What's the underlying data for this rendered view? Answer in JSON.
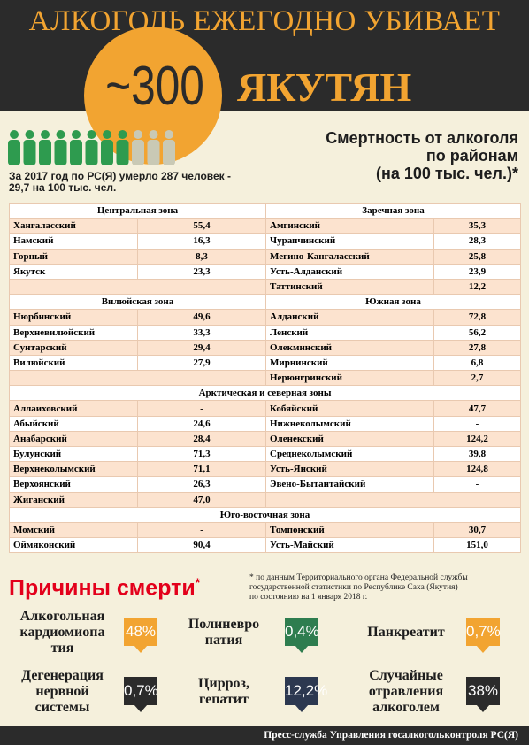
{
  "header": {
    "title": "АЛКОГОЛЬ ЕЖЕГОДНО УБИВАЕТ",
    "number": "~300",
    "people": "ЯКУТЯН"
  },
  "subtitle": "Смертность от алкоголя\nпо районам\n(на 100 тыс. чел.)*",
  "summary": "За 2017 год по РС(Я) умерло 287 человек -\n29,7 на 100 тыс. чел.",
  "table": {
    "sections": [
      {
        "zones": [
          "Центральная зона",
          "Заречная зона"
        ],
        "left": [
          [
            "Хангаласский",
            "55,4"
          ],
          [
            "Намский",
            "16,3"
          ],
          [
            "Горный",
            "8,3"
          ],
          [
            "Якутск",
            "23,3"
          ]
        ],
        "right": [
          [
            "Амгинский",
            "35,3"
          ],
          [
            "Чурапчинский",
            "28,3"
          ],
          [
            "Мегино-Кангаласский",
            "25,8"
          ],
          [
            "Усть-Алданский",
            "23,9"
          ],
          [
            "Таттинский",
            "12,2"
          ]
        ]
      },
      {
        "zones": [
          "Вилюйская зона",
          "Южная зона"
        ],
        "left": [
          [
            "Нюрбинский",
            "49,6"
          ],
          [
            "Верхневилюйский",
            "33,3"
          ],
          [
            "Сунтарский",
            "29,4"
          ],
          [
            "Вилюйский",
            "27,9"
          ]
        ],
        "right": [
          [
            "Алданский",
            "72,8"
          ],
          [
            "Ленский",
            "56,2"
          ],
          [
            "Олекминский",
            "27,8"
          ],
          [
            "Мирнинский",
            "6,8"
          ],
          [
            "Нерюнгринский",
            "2,7"
          ]
        ]
      },
      {
        "zones": [
          "Арктическая  и северная зоны"
        ],
        "left": [
          [
            "Аллаиховский",
            "-"
          ],
          [
            "Абыйский",
            "24,6"
          ],
          [
            "Анабарский",
            "28,4"
          ],
          [
            "Булунский",
            "71,3"
          ],
          [
            "Верхнеколымский",
            "71,1"
          ],
          [
            "Верхоянский",
            "26,3"
          ],
          [
            "Жиганский",
            "47,0"
          ]
        ],
        "right": [
          [
            "Кобяйский",
            "47,7"
          ],
          [
            "Нижнеколымский",
            "-"
          ],
          [
            "Оленекский",
            "124,2"
          ],
          [
            "Среднеколымский",
            "39,8"
          ],
          [
            "Усть-Янский",
            "124,8"
          ],
          [
            "Эвено-Бытантайский",
            "-"
          ]
        ]
      },
      {
        "zones": [
          "Юго-восточная зона"
        ],
        "left": [
          [
            "Момский",
            "-"
          ],
          [
            "Оймяконский",
            "90,4"
          ]
        ],
        "right": [
          [
            "Томпонский",
            "30,7"
          ],
          [
            "Усть-Майский",
            "151,0"
          ]
        ]
      }
    ]
  },
  "causes": {
    "title": "Причины смерти",
    "mark": "*",
    "note": "* по данным Территориального органа Федеральной службы\nгосударственной статистики по Республике Саха (Якутия)\nпо состоянию на 1 января 2018 г.",
    "items": [
      {
        "label": "Алкогольная\nкардиомиопа\nтия",
        "value": "48%",
        "color": "#f2a431"
      },
      {
        "label": "Полиневро\nпатия",
        "value": "0,4%",
        "color": "#2e7d4f"
      },
      {
        "label": "Панкреатит",
        "value": "0,7%",
        "color": "#f2a431"
      },
      {
        "label": "Дегенерация\nнервной\nсистемы",
        "value": "0,7%",
        "color": "#2b2b2b"
      },
      {
        "label": "Цирроз,\nгепатит",
        "value": "12,2%",
        "color": "#2c3850"
      },
      {
        "label": "Случайные\nотравления\nалкоголем",
        "value": "38%",
        "color": "#2b2b2b"
      }
    ]
  },
  "footer": "Пресс-служба Управления госалкогольконтроля РС(Я)"
}
